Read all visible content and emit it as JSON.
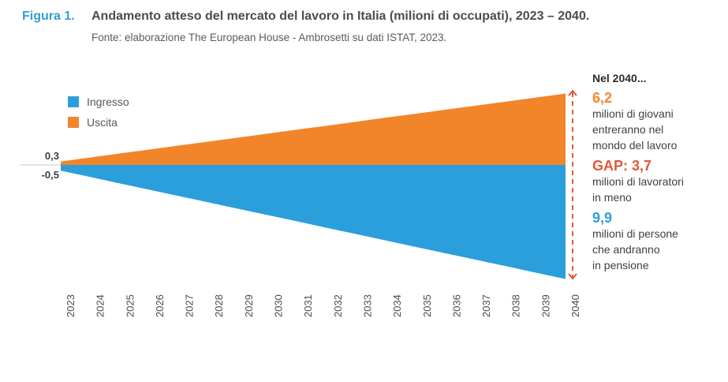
{
  "figure": {
    "label": "Figura 1.",
    "title": "Andamento atteso del mercato del lavoro in Italia (milioni di occupati), 2023 – 2040.",
    "source": "Fonte: elaborazione The European House - Ambrosetti su dati ISTAT, 2023."
  },
  "colors": {
    "ingresso": "#2b9fdb",
    "uscita": "#f2852a",
    "arrow": "#e2573a",
    "gap": "#e2573a",
    "title_accent": "#2f9ed8",
    "baseline": "#c8c8c8"
  },
  "callouts": {
    "heading": "Nel 2040...",
    "items": [
      {
        "value": "6,2",
        "color_key": "uscita",
        "lines": [
          "milioni di giovani",
          "entreranno nel",
          "mondo del lavoro"
        ]
      },
      {
        "value": "GAP: 3,7",
        "color_key": "gap",
        "lines": [
          "milioni di lavoratori",
          "in meno"
        ]
      },
      {
        "value": "9,9",
        "color_key": "ingresso",
        "lines": [
          "milioni di persone",
          "che andranno",
          "in pensione"
        ]
      }
    ]
  },
  "chart_data": {
    "type": "area",
    "title": "Andamento atteso del mercato del lavoro in Italia (milioni di occupati), 2023 – 2040.",
    "xlabel": "",
    "ylabel": "milioni di occupati",
    "x": [
      "2023",
      "2024",
      "2025",
      "2026",
      "2027",
      "2028",
      "2029",
      "2030",
      "2031",
      "2032",
      "2033",
      "2034",
      "2035",
      "2036",
      "2037",
      "2038",
      "2039",
      "2040"
    ],
    "series": [
      {
        "name": "Uscita",
        "color": "#f2852a",
        "direction": "up",
        "start": 0.3,
        "end": 6.2,
        "values": [
          0.3,
          0.65,
          1.0,
          1.34,
          1.69,
          2.04,
          2.38,
          2.73,
          3.08,
          3.42,
          3.77,
          4.12,
          4.46,
          4.81,
          5.16,
          5.5,
          5.85,
          6.2
        ]
      },
      {
        "name": "Ingresso",
        "color": "#2b9fdb",
        "direction": "down",
        "start": -0.5,
        "end": -9.9,
        "values": [
          -0.5,
          -1.05,
          -1.61,
          -2.16,
          -2.71,
          -3.26,
          -3.82,
          -4.37,
          -4.92,
          -5.48,
          -6.03,
          -6.58,
          -7.14,
          -7.69,
          -8.24,
          -8.79,
          -9.35,
          -9.9
        ]
      }
    ],
    "start_labels": {
      "top": "0,3",
      "bottom": "-0,5"
    },
    "legend": [
      {
        "name": "Ingresso",
        "color": "#2b9fdb"
      },
      {
        "name": "Uscita",
        "color": "#f2852a"
      }
    ],
    "legend_position": "top-left",
    "ylim": [
      -10,
      7
    ],
    "grid": false
  }
}
